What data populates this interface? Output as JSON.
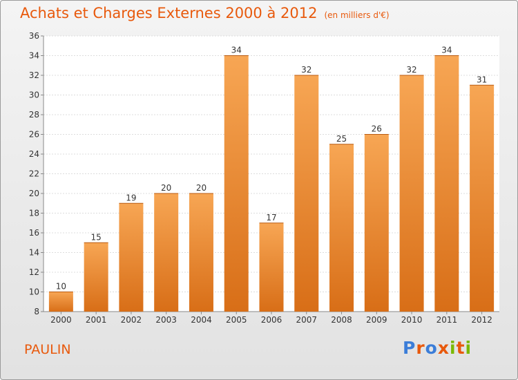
{
  "header": {
    "title": "Achats et Charges Externes 2000 à 2012",
    "subtitle": "(en milliers d'€)"
  },
  "footer": {
    "commune": "PAULIN",
    "logo_text": "Proxiti",
    "logo_colors": [
      "#3b7dd8",
      "#e8590c",
      "#3b7dd8",
      "#e8590c",
      "#7ab800",
      "#e8590c",
      "#7ab800"
    ]
  },
  "colors": {
    "bar_light": "#f7a654",
    "bar_dark": "#d86e17",
    "accent": "#e8590c"
  },
  "chart_data": {
    "type": "bar",
    "categories": [
      "2000",
      "2001",
      "2002",
      "2003",
      "2004",
      "2005",
      "2006",
      "2007",
      "2008",
      "2009",
      "2010",
      "2011",
      "2012"
    ],
    "values": [
      10,
      15,
      19,
      20,
      20,
      34,
      17,
      32,
      25,
      26,
      32,
      34,
      31
    ],
    "data_labels": [
      "10",
      "15",
      "19",
      "20",
      "20",
      "34",
      "17",
      "32",
      "25",
      "26",
      "32",
      "34",
      "31"
    ],
    "yticks": [
      "8",
      "10",
      "12",
      "14",
      "16",
      "18",
      "20",
      "22",
      "24",
      "26",
      "28",
      "30",
      "32",
      "34",
      "36"
    ],
    "ylim": [
      8,
      36
    ],
    "grid": true,
    "legend": "none"
  }
}
